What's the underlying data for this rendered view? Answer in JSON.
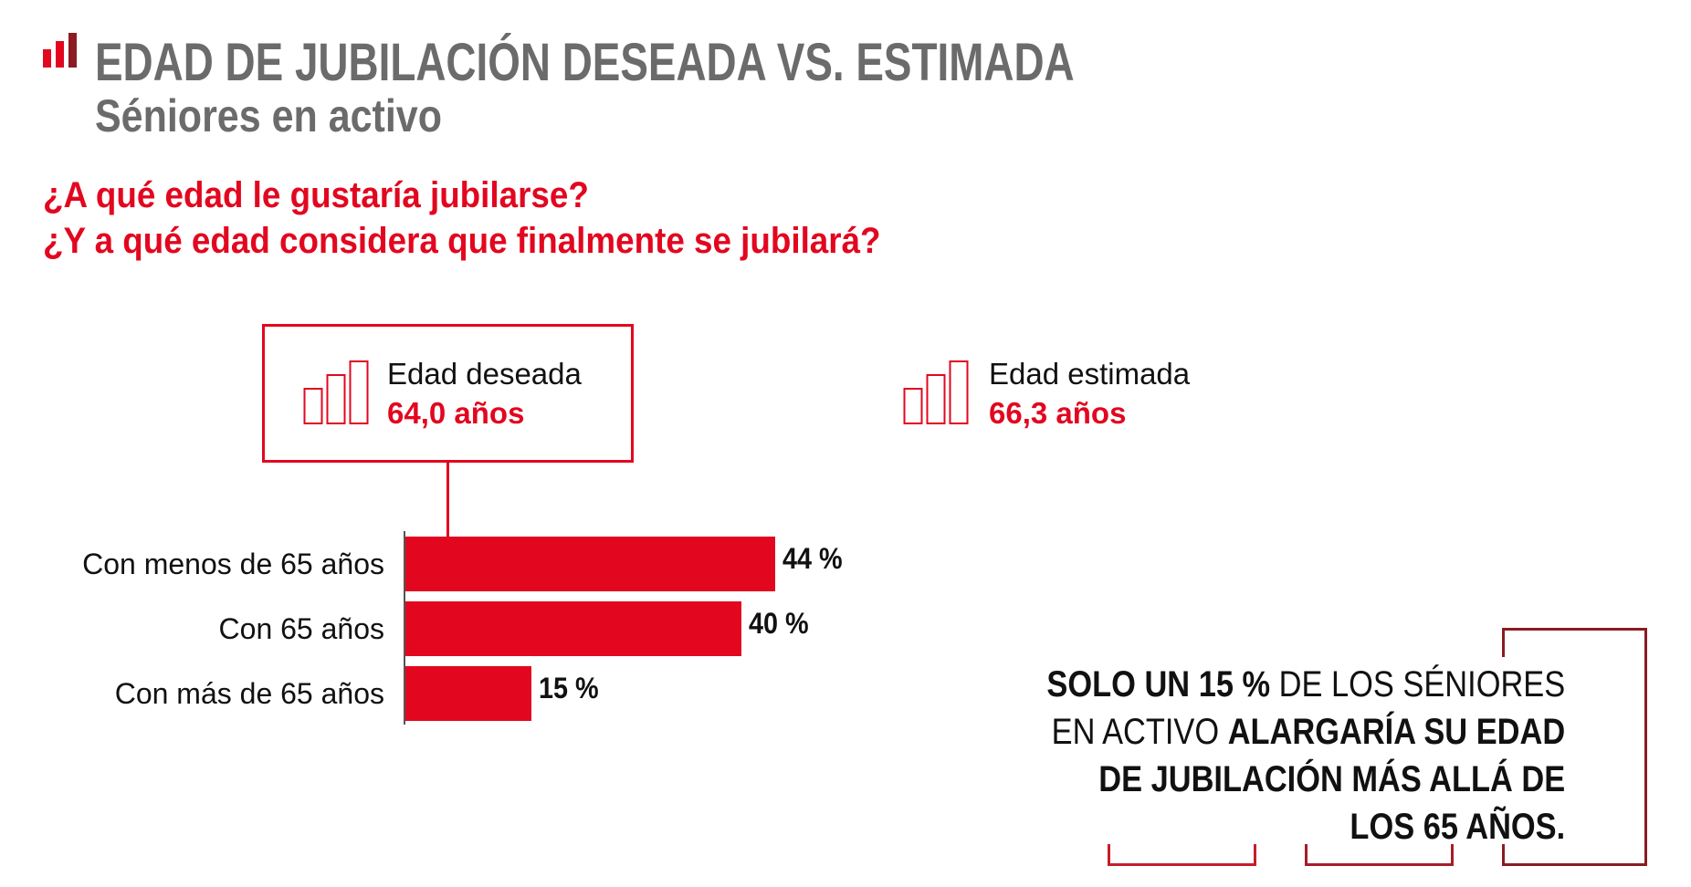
{
  "header": {
    "title": "EDAD DE JUBILACIÓN DESEADA VS. ESTIMADA",
    "subtitle": "Séniores en activo",
    "questions": [
      "¿A qué edad le gustaría jubilarse?",
      "¿Y a qué edad considera que finalmente se jubilará?"
    ]
  },
  "legend": [
    {
      "label": "Edad deseada",
      "value": "64,0 años",
      "selected": true
    },
    {
      "label": "Edad estimada",
      "value": "66,3 años",
      "selected": false
    }
  ],
  "colors": {
    "accent": "#e2071f",
    "title_gray": "#6b6b6b",
    "bracket": "#8a1c22"
  },
  "chart_data": {
    "type": "bar",
    "orientation": "horizontal",
    "categories": [
      "Con menos de 65 años",
      "Con 65 años",
      "Con más de 65 años"
    ],
    "values": [
      44,
      40,
      15
    ],
    "value_labels": [
      "44 %",
      "40 %",
      "15 %"
    ],
    "unit": "%",
    "series_shown": "Edad deseada",
    "grid": false
  },
  "callout": {
    "lines": [
      [
        {
          "t": "SOLO UN 15 %",
          "b": true
        },
        {
          "t": " DE LOS SÉNIORES",
          "b": false
        }
      ],
      [
        {
          "t": "EN ACTIVO ",
          "b": false
        },
        {
          "t": "ALARGARÍA SU EDAD",
          "b": true
        }
      ],
      [
        {
          "t": "DE JUBILACIÓN MÁS ALLÁ DE",
          "b": true
        }
      ],
      [
        {
          "t": "LOS 65 AÑOS.",
          "b": true
        }
      ]
    ]
  }
}
